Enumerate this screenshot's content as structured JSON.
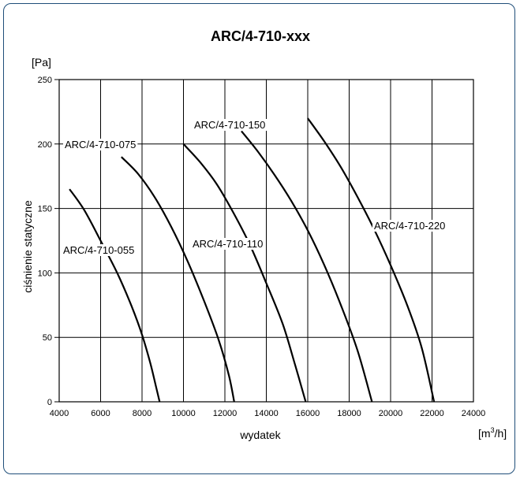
{
  "chart_data": {
    "type": "line",
    "title": "ARC/4-710-xxx",
    "xlabel": "wydatek",
    "ylabel": "ciśnienie statyczne",
    "y_unit": "[Pa]",
    "x_unit": {
      "base": "[m",
      "sup": "3",
      "tail": "/h]"
    },
    "xlim": [
      4000,
      24000
    ],
    "ylim": [
      0,
      250
    ],
    "x_ticks": [
      "4000",
      "6000",
      "8000",
      "10000",
      "12000",
      "14000",
      "16000",
      "18000",
      "20000",
      "22000",
      "24000"
    ],
    "y_ticks": [
      "0",
      "50",
      "100",
      "150",
      "200",
      "250"
    ],
    "grid": true,
    "colors": {
      "title": "#1f4e79",
      "frame": "#1f4e79",
      "curve": "#000000",
      "grid": "#000000"
    },
    "series": [
      {
        "name": "ARC/4-710-055",
        "x": [
          4500,
          5200,
          6000,
          6800,
          7500,
          8000,
          8400,
          8700,
          8850
        ],
        "y": [
          165,
          149,
          125,
          100,
          74,
          52,
          30,
          10,
          0
        ]
      },
      {
        "name": "ARC/4-710-075",
        "x": [
          7000,
          7800,
          8600,
          9400,
          10200,
          11000,
          11700,
          12200,
          12450
        ],
        "y": [
          190,
          177,
          159,
          136,
          109,
          78,
          48,
          20,
          0
        ]
      },
      {
        "name": "ARC/4-710-110",
        "x": [
          10000,
          10800,
          11600,
          12400,
          13200,
          14000,
          14800,
          15400,
          15900
        ],
        "y": [
          200,
          186,
          169,
          147,
          122,
          92,
          60,
          28,
          0
        ]
      },
      {
        "name": "ARC/4-710-150",
        "x": [
          12800,
          13600,
          14400,
          15200,
          16000,
          16800,
          17600,
          18400,
          19100
        ],
        "y": [
          210,
          194,
          176,
          156,
          133,
          106,
          75,
          40,
          0
        ]
      },
      {
        "name": "ARC/4-710-220",
        "x": [
          16000,
          16800,
          17600,
          18400,
          19200,
          20000,
          20800,
          21500,
          22100
        ],
        "y": [
          220,
          202,
          182,
          159,
          134,
          106,
          75,
          42,
          0
        ]
      }
    ]
  }
}
